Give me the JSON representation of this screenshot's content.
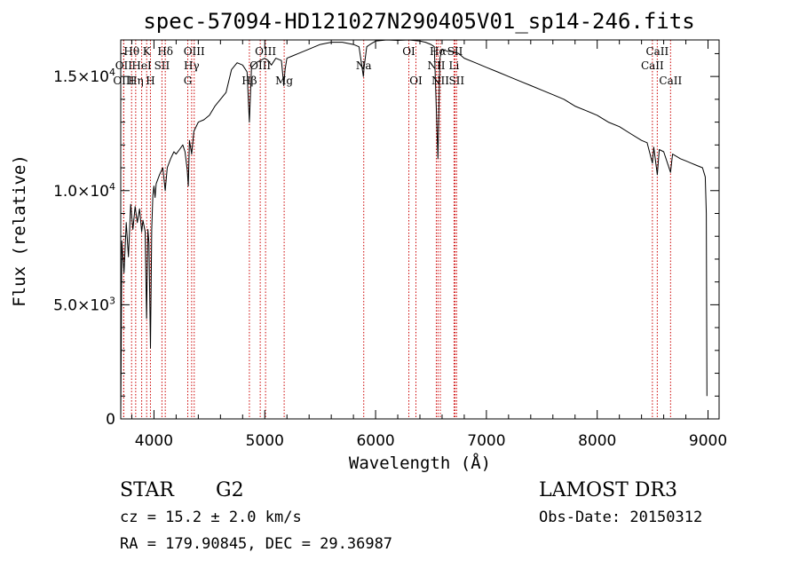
{
  "chart_data": {
    "type": "line",
    "title": "spec-57094-HD121027N290405V01_sp14-246.fits",
    "xlabel": "Wavelength (Å)",
    "ylabel": "Flux (relative)",
    "xlim": [
      3700,
      9100
    ],
    "ylim": [
      0,
      16600
    ],
    "x_ticks": [
      4000,
      5000,
      6000,
      7000,
      8000,
      9000
    ],
    "x_tick_labels": [
      "4000",
      "5000",
      "6000",
      "7000",
      "8000",
      "9000"
    ],
    "y_ticks": [
      0,
      5000,
      10000,
      15000
    ],
    "y_tick_labels": [
      {
        "base": "0",
        "exp": ""
      },
      {
        "base": "5.0×10",
        "exp": "3"
      },
      {
        "base": "1.0×10",
        "exp": "4"
      },
      {
        "base": "1.5×10",
        "exp": "4"
      }
    ],
    "series": [
      {
        "name": "spectrum",
        "color": "#000000",
        "points": [
          [
            3700,
            0
          ],
          [
            3705,
            3500
          ],
          [
            3710,
            7800
          ],
          [
            3730,
            6400
          ],
          [
            3750,
            8600
          ],
          [
            3770,
            7100
          ],
          [
            3790,
            9400
          ],
          [
            3810,
            8300
          ],
          [
            3830,
            9300
          ],
          [
            3850,
            8600
          ],
          [
            3870,
            9200
          ],
          [
            3889,
            8200
          ],
          [
            3900,
            8700
          ],
          [
            3920,
            8200
          ],
          [
            3933,
            4400
          ],
          [
            3945,
            8300
          ],
          [
            3955,
            7700
          ],
          [
            3968,
            3100
          ],
          [
            3980,
            8300
          ],
          [
            3990,
            9800
          ],
          [
            4000,
            10200
          ],
          [
            4010,
            9700
          ],
          [
            4020,
            10300
          ],
          [
            4050,
            10700
          ],
          [
            4080,
            11000
          ],
          [
            4101,
            10000
          ],
          [
            4120,
            11000
          ],
          [
            4150,
            11400
          ],
          [
            4180,
            11700
          ],
          [
            4200,
            11600
          ],
          [
            4230,
            11800
          ],
          [
            4260,
            12000
          ],
          [
            4280,
            11700
          ],
          [
            4300,
            10900
          ],
          [
            4310,
            10200
          ],
          [
            4320,
            12200
          ],
          [
            4340,
            11600
          ],
          [
            4360,
            12600
          ],
          [
            4400,
            13000
          ],
          [
            4450,
            13100
          ],
          [
            4500,
            13300
          ],
          [
            4550,
            13700
          ],
          [
            4600,
            14000
          ],
          [
            4650,
            14300
          ],
          [
            4700,
            15300
          ],
          [
            4750,
            15600
          ],
          [
            4800,
            15500
          ],
          [
            4840,
            15200
          ],
          [
            4861,
            13000
          ],
          [
            4880,
            15400
          ],
          [
            4920,
            15600
          ],
          [
            4960,
            15700
          ],
          [
            5000,
            15800
          ],
          [
            5030,
            15700
          ],
          [
            5060,
            15500
          ],
          [
            5100,
            15800
          ],
          [
            5150,
            15700
          ],
          [
            5172,
            14600
          ],
          [
            5183,
            15300
          ],
          [
            5200,
            15800
          ],
          [
            5250,
            15900
          ],
          [
            5300,
            16000
          ],
          [
            5400,
            16200
          ],
          [
            5500,
            16400
          ],
          [
            5600,
            16500
          ],
          [
            5700,
            16500
          ],
          [
            5800,
            16400
          ],
          [
            5850,
            16300
          ],
          [
            5890,
            15000
          ],
          [
            5896,
            15400
          ],
          [
            5920,
            16300
          ],
          [
            5950,
            16400
          ],
          [
            6000,
            16550
          ],
          [
            6100,
            16600
          ],
          [
            6200,
            16580
          ],
          [
            6300,
            16600
          ],
          [
            6400,
            16550
          ],
          [
            6450,
            16500
          ],
          [
            6500,
            16400
          ],
          [
            6530,
            16300
          ],
          [
            6563,
            11400
          ],
          [
            6580,
            15800
          ],
          [
            6600,
            16200
          ],
          [
            6650,
            16100
          ],
          [
            6700,
            16100
          ],
          [
            6750,
            16000
          ],
          [
            6800,
            15800
          ],
          [
            6900,
            15600
          ],
          [
            7000,
            15400
          ],
          [
            7100,
            15200
          ],
          [
            7200,
            15000
          ],
          [
            7300,
            14800
          ],
          [
            7400,
            14600
          ],
          [
            7500,
            14400
          ],
          [
            7600,
            14200
          ],
          [
            7700,
            14000
          ],
          [
            7800,
            13700
          ],
          [
            7900,
            13500
          ],
          [
            8000,
            13300
          ],
          [
            8100,
            13000
          ],
          [
            8200,
            12800
          ],
          [
            8300,
            12500
          ],
          [
            8400,
            12200
          ],
          [
            8450,
            12100
          ],
          [
            8498,
            11200
          ],
          [
            8510,
            11900
          ],
          [
            8542,
            10700
          ],
          [
            8560,
            11800
          ],
          [
            8600,
            11700
          ],
          [
            8662,
            10800
          ],
          [
            8680,
            11600
          ],
          [
            8750,
            11400
          ],
          [
            8800,
            11300
          ],
          [
            8850,
            11200
          ],
          [
            8900,
            11100
          ],
          [
            8950,
            11000
          ],
          [
            8975,
            10600
          ],
          [
            8985,
            9000
          ],
          [
            8990,
            1000
          ]
        ]
      }
    ],
    "spectral_lines": [
      {
        "label": "Hθ",
        "wavelength": 3798,
        "row": 1
      },
      {
        "label": "OII",
        "wavelength": 3727,
        "row": 2
      },
      {
        "label": "OIII",
        "wavelength": 3727,
        "row": 3
      },
      {
        "label": "K",
        "wavelength": 3934,
        "row": 1
      },
      {
        "label": "HeI",
        "wavelength": 3889,
        "row": 2
      },
      {
        "label": "Hη",
        "wavelength": 3835,
        "row": 3
      },
      {
        "label": "Hδ",
        "wavelength": 4102,
        "row": 1
      },
      {
        "label": "SII",
        "wavelength": 4072,
        "row": 2
      },
      {
        "label": "H",
        "wavelength": 3968,
        "row": 3
      },
      {
        "label": "OIII",
        "wavelength": 4363,
        "row": 1
      },
      {
        "label": "Hγ",
        "wavelength": 4340,
        "row": 2
      },
      {
        "label": "G",
        "wavelength": 4305,
        "row": 3
      },
      {
        "label": "OIII",
        "wavelength": 5007,
        "row": 1
      },
      {
        "label": "OIII",
        "wavelength": 4959,
        "row": 2
      },
      {
        "label": "Hβ",
        "wavelength": 4861,
        "row": 3
      },
      {
        "label": "Mg",
        "wavelength": 5175,
        "row": 3
      },
      {
        "label": "Na",
        "wavelength": 5893,
        "row": 2
      },
      {
        "label": "OI",
        "wavelength": 6300,
        "row": 1
      },
      {
        "label": "OI",
        "wavelength": 6364,
        "row": 3
      },
      {
        "label": "Hα",
        "wavelength": 6563,
        "row": 1
      },
      {
        "label": "NII",
        "wavelength": 6548,
        "row": 2
      },
      {
        "label": "NII",
        "wavelength": 6584,
        "row": 3
      },
      {
        "label": "SII",
        "wavelength": 6717,
        "row": 1
      },
      {
        "label": "Li",
        "wavelength": 6708,
        "row": 2
      },
      {
        "label": "SII",
        "wavelength": 6731,
        "row": 3
      },
      {
        "label": "CaII",
        "wavelength": 8542,
        "row": 1
      },
      {
        "label": "CaII",
        "wavelength": 8498,
        "row": 2
      },
      {
        "label": "CaII",
        "wavelength": 8662,
        "row": 3
      }
    ]
  },
  "info": {
    "object_class": "STAR",
    "subclass": "G2",
    "survey": "LAMOST DR3",
    "redshift": "cz = 15.2 ± 2.0 km/s",
    "obs_date": "Obs-Date: 20150312",
    "coords": "RA = 179.90845, DEC =  29.36987"
  },
  "colors": {
    "line_marker": "#cc0000",
    "spectrum": "#000000",
    "background": "#ffffff"
  }
}
